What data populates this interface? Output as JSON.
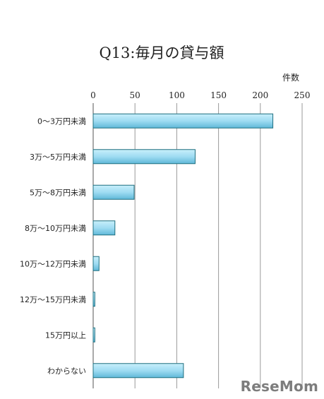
{
  "chart_data": {
    "type": "bar",
    "orientation": "horizontal",
    "title": "Q13:毎月の貸与額",
    "unit_label": "件数",
    "categories": [
      "0〜3万円未満",
      "3万〜5万円未満",
      "5万〜8万円未満",
      "8万〜10万円未満",
      "10万〜12万円未満",
      "12万〜15万円未満",
      "15万円以上",
      "わからない"
    ],
    "values": [
      215,
      122,
      49,
      26,
      7,
      2,
      2,
      108
    ],
    "xlim": [
      0,
      250
    ],
    "xticks": [
      "0",
      "50",
      "100",
      "150",
      "200",
      "250"
    ],
    "grid": true,
    "bar_color": "#9fdcf2"
  },
  "watermark": "ReseMom"
}
